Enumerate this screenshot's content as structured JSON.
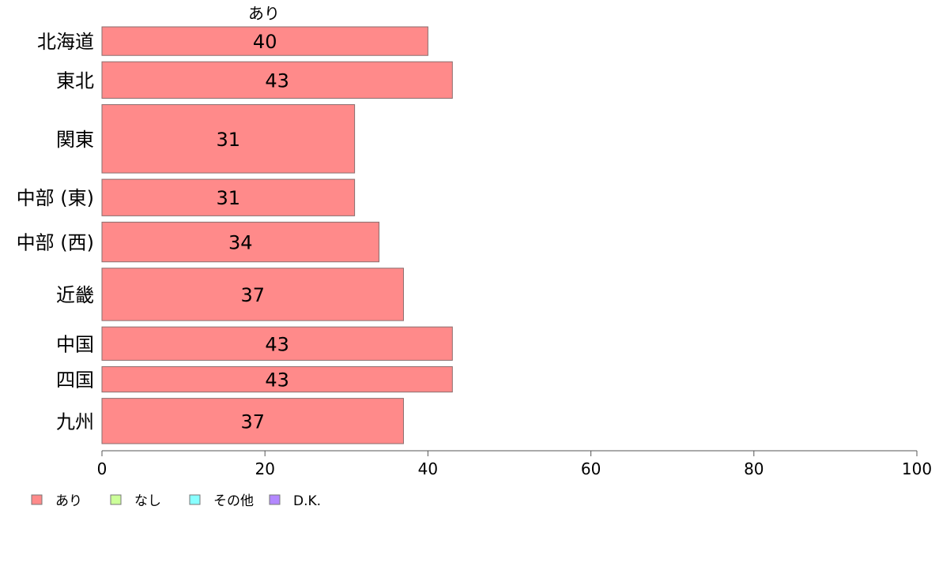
{
  "chart_data": {
    "type": "bar",
    "orientation": "horizontal",
    "stacked": true,
    "categories": [
      "北海道",
      "東北",
      "関東",
      "中部 (東)",
      "中部 (西)",
      "近畿",
      "中国",
      "四国",
      "九州"
    ],
    "category_weights": [
      36,
      46,
      86,
      46,
      50,
      66,
      42,
      32,
      57
    ],
    "series": [
      {
        "name": "あり",
        "color": "#ff8a8a",
        "values": [
          40,
          43,
          31,
          31,
          34,
          37,
          43,
          43,
          37
        ]
      }
    ],
    "bar_labels": [
      "40",
      "43",
      "31",
      "31",
      "34",
      "37",
      "43",
      "43",
      "37"
    ],
    "top_label": "あり",
    "xlim": [
      0,
      100
    ],
    "xticks": [
      0,
      20,
      40,
      60,
      80,
      100
    ],
    "grid": false,
    "legend": {
      "position": "bottom-left",
      "items": [
        {
          "label": "あり",
          "color": "#ff8a8a"
        },
        {
          "label": "なし",
          "color": "#ccff99"
        },
        {
          "label": "その他",
          "color": "#88ffff"
        },
        {
          "label": "D.K.",
          "color": "#b388ff"
        }
      ]
    }
  }
}
